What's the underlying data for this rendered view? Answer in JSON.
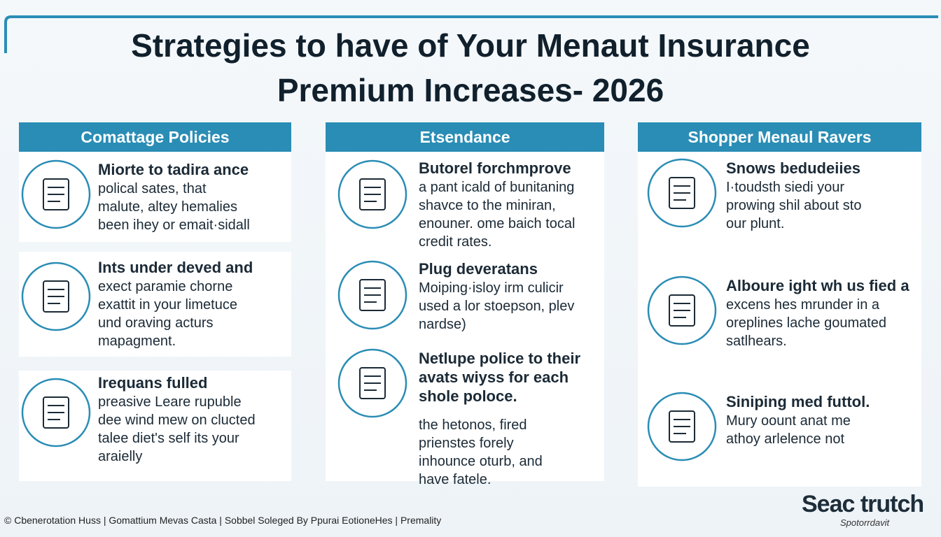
{
  "header": {
    "title": [
      "Strategies to have of Your Menaut Insurance",
      "Premium Increases- 2026"
    ]
  },
  "columns": [
    {
      "heading": "Comattage Policies",
      "items": [
        {
          "title": [
            "Miorte to tadira ance"
          ],
          "lines": [
            "polical sates, that",
            "malute, altey hemalies",
            "been ihey or emait·sidall"
          ]
        },
        {
          "title": [
            "Ints under deved and"
          ],
          "lines": [
            "exect paramie chorne",
            "exattit in your limetuce",
            "und oraving acturs",
            "mapagment."
          ]
        },
        {
          "title": [
            "Irequans fulled"
          ],
          "lines": [
            "preasive Leare rupuble",
            "dee wind mew on clucted",
            "talee diet's self its your",
            "araielly"
          ]
        }
      ]
    },
    {
      "heading": "Etsendance",
      "items": [
        {
          "title": [
            "Butorel forchmprove"
          ],
          "lines": [
            "a pant icald of bunitaning",
            "shavce to the miniran,",
            "enouner. ome baich tocal",
            "credit rates."
          ]
        },
        {
          "title": [
            "Plug deveratans"
          ],
          "lines": [
            "Moiping·isloy irm culicir",
            "used a lor stoepson, plev",
            "nardse)"
          ]
        },
        {
          "title": [
            "Netlupe police to their",
            "avats wiyss for each",
            "shole poloce."
          ],
          "lines": [
            "the hetonos, fired",
            "prienstes forely",
            "inhounce oturb, and",
            "have fatele."
          ]
        }
      ]
    },
    {
      "heading": "Shopper Menaul Ravers",
      "items": [
        {
          "title": [
            "Snows bedudeiies"
          ],
          "lines": [
            "I·toudsth siedi your",
            "prowing shil about sto",
            "our plunt."
          ]
        },
        {
          "title": [
            "Alboure ight wh us fied a"
          ],
          "lines": [
            "excens hes mrunder in a",
            "oreplines lache goumated",
            "satlhears."
          ]
        },
        {
          "title": [
            "Siniping med futtol."
          ],
          "lines": [
            "Mury oount anat me",
            "athoy arlelence not"
          ]
        }
      ]
    }
  ],
  "footer": {
    "text": "© Cbenerotation Huss | Gomattium Mevas Casta | Sobbel Soleged By Ppurai EotioneHes | Premality",
    "logo": "Seac trutch",
    "logo_sub": "Spotorrdavit"
  }
}
